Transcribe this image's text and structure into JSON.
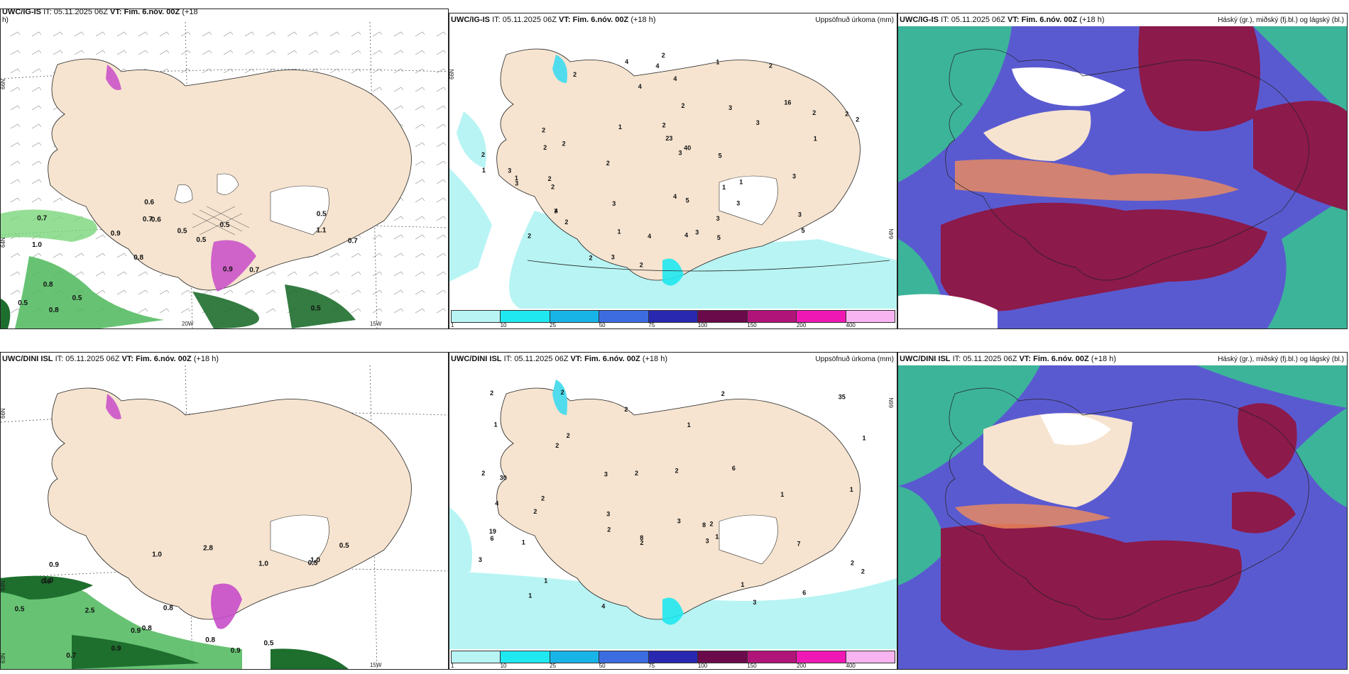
{
  "colors": {
    "land": "#f6e4d0",
    "snow": "#ffffff",
    "sea_bg": "#ffffff",
    "rain_light": "#b8f4f4",
    "rain_mid": "#50dcec",
    "wind_green": "#4cb85a",
    "wind_dark": "#1e6e2e",
    "pink": "#c84cc8",
    "cloud_purple": "#5a5ad0",
    "cloud_maroon": "#8c1a4a",
    "cloud_teal": "#3cb49a",
    "cloud_orange": "#f08c5a"
  },
  "panels": {
    "top_wind": {
      "model": "UWC/IG-IS",
      "it": "IT: 05.11.2025 06Z",
      "vt": "VT: Fim. 6.nóv. 00Z",
      "lead": "(+18",
      "lead2": "h)",
      "lat_labels": [
        "66N",
        "64N"
      ],
      "lon_labels": [
        "20W",
        "15W"
      ],
      "values": [
        "0.5",
        "1.0",
        "0.5",
        "0.8",
        "0.5",
        "0.8",
        "0.7",
        "0.5",
        "0.8",
        "0.9",
        "0.5",
        "0.5",
        "0.6",
        "0.5",
        "0.7",
        "0.7",
        "0.6",
        "0.7",
        "0.9",
        "1.1"
      ]
    },
    "top_precip": {
      "model": "UWC/IG-IS",
      "it": "IT: 05.11.2025 06Z",
      "vt": "VT: Fim. 6.nóv. 00Z",
      "lead": "(+18 h)",
      "field": "Uppsöfnuð úrkoma (mm)",
      "lat_labels": [
        "66N",
        "64N"
      ],
      "values": [
        "2",
        "2",
        "2",
        "16",
        "5",
        "2",
        "2",
        "4",
        "2",
        "3",
        "3",
        "2",
        "3",
        "3",
        "2",
        "4",
        "5",
        "2",
        "7",
        "3",
        "5",
        "4",
        "4",
        "40",
        "23",
        "1",
        "1",
        "1",
        "2",
        "1",
        "2",
        "2",
        "3",
        "4",
        "3",
        "3",
        "2",
        "5",
        "3",
        "3",
        "2",
        "4",
        "4",
        "2",
        "1",
        "2",
        "1",
        "4",
        "3",
        "3",
        "1",
        "2",
        "2",
        "1",
        "2"
      ]
    },
    "top_cloud": {
      "model": "UWC/IG-IS",
      "it": "IT: 05.11.2025 06Z",
      "vt": "VT: Fim. 6.nóv. 00Z",
      "lead": "(+18 h)",
      "field": "Háský (gr.), miðský (fj.bl.) og lágský (bl.)"
    },
    "bot_wind": {
      "model": "UWC/DINI ISL",
      "it": "IT: 05.11.2025 06Z",
      "vt": "VT: Fim. 6.nóv. 00Z",
      "lead": "(+18 h)",
      "lat_labels": [
        "66N",
        "64N",
        "63N"
      ],
      "lon_labels": [
        "15W"
      ],
      "values": [
        "0.9",
        "0.8",
        "2.8",
        "0.7",
        "1.0",
        "0.9",
        "0.5",
        "1.0",
        "0.8",
        "0.6",
        "0.9",
        "1.0",
        "0.5",
        "0.8",
        "1.0",
        "0.9",
        "2.5",
        "0.5",
        "0.5"
      ]
    },
    "bot_precip": {
      "model": "UWC/DINI ISL",
      "it": "IT: 05.11.2025 06Z",
      "vt": "VT: Fim. 6.nóv. 00Z",
      "lead": "(+18 h)",
      "field": "Uppsöfnuð úrkoma (mm)",
      "lat_labels": [
        "66N"
      ],
      "values": [
        "1",
        "30",
        "35",
        "3",
        "3",
        "2",
        "1",
        "2",
        "3",
        "2",
        "1",
        "2",
        "1",
        "8",
        "7",
        "2",
        "6",
        "6",
        "4",
        "2",
        "19",
        "8",
        "2",
        "1",
        "2",
        "2",
        "1",
        "4",
        "2",
        "2",
        "1",
        "2",
        "2",
        "1",
        "3",
        "2",
        "3",
        "3",
        "6",
        "2",
        "2",
        "1",
        "1"
      ]
    },
    "bot_cloud": {
      "model": "UWC/DINI ISL",
      "it": "IT: 05.11.2025 06Z",
      "vt": "VT: Fim. 6.nóv. 00Z",
      "lead": "(+18 h)",
      "field": "Háský (gr.), miðský (fj.bl.) og lágský (bl.)"
    }
  },
  "precip_colorbar": {
    "ticks": [
      "1",
      "10",
      "25",
      "50",
      "75",
      "100",
      "150",
      "200",
      "400"
    ],
    "colors": [
      "#b8f4f4",
      "#20e8f0",
      "#18b4e8",
      "#3c6ce0",
      "#2828b0",
      "#6a0a4a",
      "#b01478",
      "#f018b4",
      "#f8b4f0"
    ]
  }
}
